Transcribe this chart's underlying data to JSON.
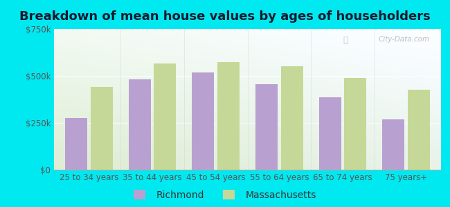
{
  "title": "Breakdown of mean house values by ages of householders",
  "categories": [
    "25 to 34 years",
    "35 to 44 years",
    "45 to 54 years",
    "55 to 64 years",
    "65 to 74 years",
    "75 years+"
  ],
  "richmond": [
    275000,
    480000,
    520000,
    455000,
    385000,
    270000
  ],
  "massachusetts": [
    440000,
    565000,
    575000,
    550000,
    490000,
    425000
  ],
  "richmond_color": "#b8a0d0",
  "massachusetts_color": "#c5d898",
  "background_outer": "#00e8f0",
  "ylim": [
    0,
    750000
  ],
  "yticks": [
    0,
    250000,
    500000,
    750000
  ],
  "ytick_labels": [
    "$0",
    "$250k",
    "$500k",
    "$750k"
  ],
  "bar_width": 0.35,
  "bar_gap": 0.05,
  "legend_richmond": "Richmond",
  "legend_massachusetts": "Massachusetts",
  "title_fontsize": 13,
  "tick_fontsize": 8.5,
  "legend_fontsize": 10
}
